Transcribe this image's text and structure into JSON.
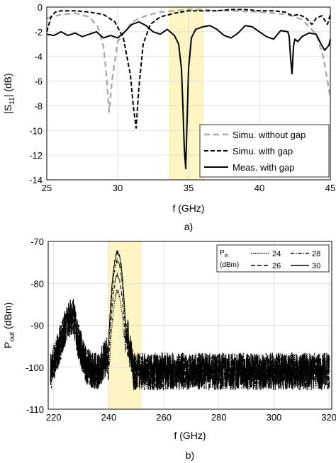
{
  "chart_data": [
    {
      "type": "line",
      "panel_label": "a)",
      "xlabel": "f (GHz)",
      "ylabel_parts": [
        "|S",
        "11",
        "| (dB)"
      ],
      "xlim": [
        25,
        45
      ],
      "ylim": [
        -14,
        0
      ],
      "xticks": [
        25,
        30,
        35,
        40,
        45
      ],
      "yticks": [
        0,
        -2,
        -4,
        -6,
        -8,
        -10,
        -12,
        -14
      ],
      "grid": true,
      "highlight_band": {
        "x_range": [
          33.6,
          36.1
        ],
        "color": "#fdf6c4"
      },
      "legend": {
        "position": "bottom-right",
        "entries": [
          "Simu. without gap",
          "Simu. with gap",
          "Meas. with gap"
        ]
      },
      "series": [
        {
          "name": "Simu. without gap",
          "color": "#a7adad",
          "dash": "8,5",
          "x": [
            25,
            26,
            27,
            28,
            28.6,
            29,
            29.2,
            29.4,
            29.6,
            30,
            31,
            32,
            33,
            34,
            35,
            36,
            37,
            38,
            40,
            42,
            43,
            44,
            44.5,
            45
          ],
          "y": [
            -0.9,
            -0.6,
            -0.5,
            -0.8,
            -1.6,
            -3.2,
            -5.4,
            -8.5,
            -6.0,
            -2.8,
            -1.2,
            -0.7,
            -0.4,
            -0.3,
            -0.2,
            -0.2,
            -0.3,
            -0.3,
            -0.4,
            -0.6,
            -1.0,
            -2.2,
            -4.0,
            -7.3
          ]
        },
        {
          "name": "Simu. with gap",
          "color": "#000000",
          "dash": "6,3",
          "x": [
            25,
            25.3,
            25.6,
            26,
            27,
            28,
            29,
            29.8,
            30.4,
            30.9,
            31.1,
            31.3,
            31.5,
            31.8,
            32.3,
            33,
            34,
            35,
            36,
            37,
            38,
            39,
            40,
            41,
            41.8,
            42.3,
            42.8,
            43.3,
            43.7,
            44,
            44.4,
            44.8,
            45
          ],
          "y": [
            -2.0,
            -0.8,
            -0.4,
            -0.3,
            -0.3,
            -0.4,
            -0.6,
            -1.2,
            -2.5,
            -5.5,
            -8.0,
            -9.8,
            -6.5,
            -3.0,
            -1.4,
            -0.8,
            -0.5,
            -0.3,
            -0.3,
            -0.3,
            -0.2,
            -0.2,
            -0.3,
            -0.3,
            -0.4,
            -0.7,
            -0.6,
            -0.9,
            -1.4,
            -0.9,
            -0.7,
            -1.4,
            -0.6
          ]
        },
        {
          "name": "Meas. with gap",
          "color": "#000000",
          "dash": "",
          "x": [
            25,
            25.5,
            26,
            26.5,
            27,
            27.5,
            28,
            28.5,
            29,
            29.5,
            30,
            30.5,
            31,
            31.5,
            32,
            32.5,
            33,
            33.5,
            34,
            34.3,
            34.5,
            34.6,
            34.7,
            34.8,
            34.9,
            35.0,
            35.2,
            35.5,
            36,
            36.5,
            37,
            37.5,
            38,
            38.5,
            39,
            39.5,
            40,
            40.5,
            41,
            41.5,
            42,
            42.1,
            42.2,
            42.3,
            42.4,
            42.5,
            42.7,
            43,
            43.5,
            44,
            44.3,
            44.6,
            44.9,
            45
          ],
          "y": [
            -2.2,
            -2.3,
            -2.0,
            -2.3,
            -2.1,
            -2.4,
            -2.2,
            -2.0,
            -2.5,
            -2.3,
            -2.5,
            -2.0,
            -1.4,
            -1.2,
            -1.5,
            -2.0,
            -2.2,
            -1.8,
            -2.3,
            -3.0,
            -5.0,
            -8.0,
            -11.5,
            -13.1,
            -9.0,
            -5.0,
            -2.5,
            -1.8,
            -1.6,
            -1.5,
            -1.8,
            -2.3,
            -2.5,
            -2.1,
            -1.5,
            -1.6,
            -2.0,
            -2.4,
            -2.6,
            -1.9,
            -2.0,
            -2.4,
            -4.2,
            -5.4,
            -3.2,
            -2.6,
            -2.8,
            -2.4,
            -2.1,
            -2.2,
            -2.9,
            -3.5,
            -3.1,
            -2.6
          ]
        }
      ]
    },
    {
      "type": "line",
      "panel_label": "b)",
      "xlabel": "f (GHz)",
      "ylabel_parts": [
        "P",
        "out",
        " (dBm)"
      ],
      "xlim": [
        218,
        321
      ],
      "ylim": [
        -110,
        -70
      ],
      "xticks": [
        220,
        240,
        260,
        280,
        300,
        320
      ],
      "yticks": [
        -70,
        -80,
        -90,
        -100,
        -110
      ],
      "grid": true,
      "highlight_band": {
        "x_range": [
          239.8,
          252.0
        ],
        "color": "#fdf6c4"
      },
      "legend": {
        "position": "top-right",
        "title_parts": [
          "P",
          "in",
          "(dBm)"
        ],
        "entries": [
          "24",
          "26",
          "28",
          "30"
        ]
      },
      "noise_floor_dBm": [
        -105,
        -98
      ],
      "series": [
        {
          "name": "24",
          "dash": "1.5,1.5",
          "peak_dBm": -82
        },
        {
          "name": "26",
          "dash": "6,3",
          "peak_dBm": -78
        },
        {
          "name": "28",
          "dash": "5,2,1.5,2",
          "peak_dBm": -74.5
        },
        {
          "name": "30",
          "dash": "",
          "peak_dBm": -72.5
        }
      ],
      "peak_frequency_GHz": 243.2,
      "feature_points": [
        {
          "x": 219,
          "y": -101
        },
        {
          "x": 222,
          "y": -95
        },
        {
          "x": 225,
          "y": -89
        },
        {
          "x": 227,
          "y": -87.5
        },
        {
          "x": 229,
          "y": -94
        },
        {
          "x": 232,
          "y": -100
        },
        {
          "x": 236,
          "y": -101
        },
        {
          "x": 239.5,
          "y": -97
        },
        {
          "x": 240.5,
          "y": -104
        },
        {
          "x": 247,
          "y": -93
        },
        {
          "x": 249,
          "y": -101
        },
        {
          "x": 260,
          "y": -101
        },
        {
          "x": 280,
          "y": -101
        },
        {
          "x": 300,
          "y": -101
        },
        {
          "x": 320,
          "y": -101
        }
      ]
    }
  ]
}
